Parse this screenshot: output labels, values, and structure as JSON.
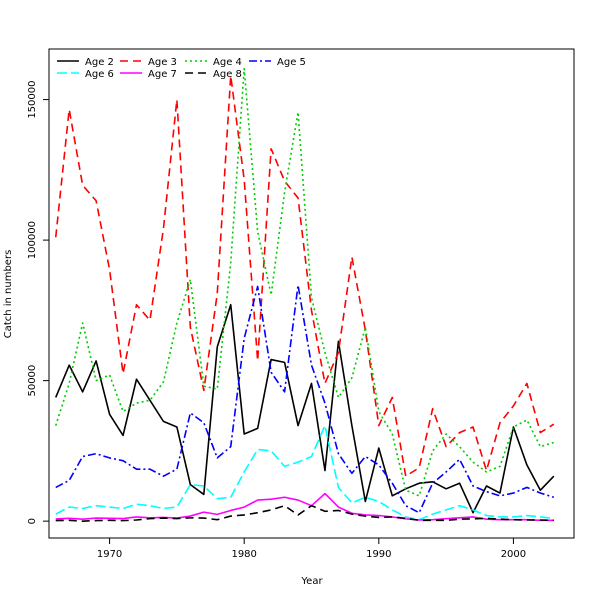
{
  "chart_data": {
    "type": "line",
    "xlabel": "Year",
    "ylabel": "Catch in numbers",
    "xlim": [
      1965.5,
      2004.5
    ],
    "ylim": [
      -6000,
      168000
    ],
    "xticks": [
      1970,
      1980,
      1990,
      2000
    ],
    "yticks": [
      0,
      50000,
      100000,
      150000
    ],
    "grid": false,
    "legend": "top-left",
    "x": [
      1966,
      1967,
      1968,
      1969,
      1970,
      1971,
      1972,
      1973,
      1974,
      1975,
      1976,
      1977,
      1978,
      1979,
      1980,
      1981,
      1982,
      1983,
      1984,
      1985,
      1986,
      1987,
      1988,
      1989,
      1990,
      1991,
      1992,
      1993,
      1994,
      1995,
      1996,
      1997,
      1998,
      1999,
      2000,
      2001,
      2002,
      2003
    ],
    "series": [
      {
        "name": "Age 2",
        "color": "#000000",
        "dash": "solid",
        "values": [
          44000,
          55500,
          46000,
          57000,
          38000,
          30500,
          50500,
          43000,
          35500,
          33500,
          13000,
          9500,
          62000,
          77000,
          31000,
          33000,
          57500,
          56500,
          34000,
          49000,
          18000,
          64000,
          34000,
          7000,
          26000,
          9000,
          11500,
          13500,
          14000,
          11500,
          13500,
          3000,
          12500,
          10000,
          33500,
          20000,
          11000,
          16000
        ]
      },
      {
        "name": "Age 3",
        "color": "#ff0000",
        "dash": "8,5",
        "values": [
          101000,
          146500,
          119500,
          114000,
          89500,
          52500,
          77000,
          71500,
          104000,
          150000,
          69000,
          46500,
          81000,
          158500,
          121500,
          57000,
          132500,
          121000,
          115000,
          75000,
          49000,
          60000,
          94000,
          68000,
          34000,
          44000,
          16000,
          19000,
          40000,
          26500,
          31500,
          33500,
          18000,
          35000,
          41000,
          49000,
          31500,
          34500
        ]
      },
      {
        "name": "Age 4",
        "color": "#00cc00",
        "dash": "2,3",
        "values": [
          34000,
          49000,
          70500,
          50000,
          52000,
          39000,
          42000,
          43000,
          49500,
          70500,
          86000,
          48000,
          47000,
          92000,
          161000,
          103000,
          80500,
          117000,
          145500,
          79500,
          60000,
          44000,
          51000,
          69000,
          39000,
          31000,
          11000,
          9000,
          25000,
          31000,
          26500,
          21000,
          17500,
          19500,
          33500,
          36000,
          26500,
          28000
        ]
      },
      {
        "name": "Age 5",
        "color": "#0000ff",
        "dash": "8,3,2,3",
        "values": [
          12000,
          14500,
          23000,
          24000,
          22500,
          21500,
          18500,
          18500,
          16000,
          18500,
          38500,
          35000,
          22500,
          26500,
          65000,
          83500,
          53000,
          46000,
          84000,
          55500,
          42000,
          24000,
          17000,
          23000,
          20000,
          13500,
          5500,
          3000,
          13500,
          17500,
          22000,
          12500,
          10500,
          9000,
          10000,
          12000,
          10000,
          8500
        ]
      },
      {
        "name": "Age 6",
        "color": "#00ffff",
        "dash": "10,4",
        "values": [
          2500,
          5000,
          4500,
          5500,
          5000,
          4500,
          6000,
          5500,
          4500,
          5000,
          13000,
          12500,
          8000,
          8500,
          17500,
          25500,
          25000,
          19500,
          21000,
          23000,
          34000,
          12000,
          6500,
          8500,
          7000,
          4000,
          1500,
          500,
          2500,
          4000,
          5500,
          4000,
          2000,
          1500,
          1500,
          2000,
          1500,
          1000
        ]
      },
      {
        "name": "Age 7",
        "color": "#ff00ff",
        "dash": "solid",
        "values": [
          800,
          1000,
          700,
          1100,
          1000,
          900,
          1500,
          1200,
          1300,
          1100,
          1800,
          3200,
          2400,
          3800,
          5000,
          7500,
          7800,
          8500,
          7500,
          5500,
          9800,
          5000,
          2800,
          2200,
          2000,
          1500,
          800,
          400,
          500,
          900,
          1200,
          1500,
          700,
          500,
          500,
          500,
          300,
          300
        ]
      },
      {
        "name": "Age 8",
        "color": "#000000",
        "dash": "8,5",
        "values": [
          200,
          300,
          0,
          200,
          300,
          200,
          400,
          900,
          1100,
          900,
          1200,
          1100,
          500,
          1800,
          2200,
          3000,
          4000,
          5500,
          2200,
          5500,
          3500,
          3800,
          2500,
          1800,
          1300,
          1500,
          1000,
          300,
          300,
          300,
          700,
          800,
          1000,
          700,
          500,
          400,
          400,
          300
        ]
      }
    ]
  }
}
